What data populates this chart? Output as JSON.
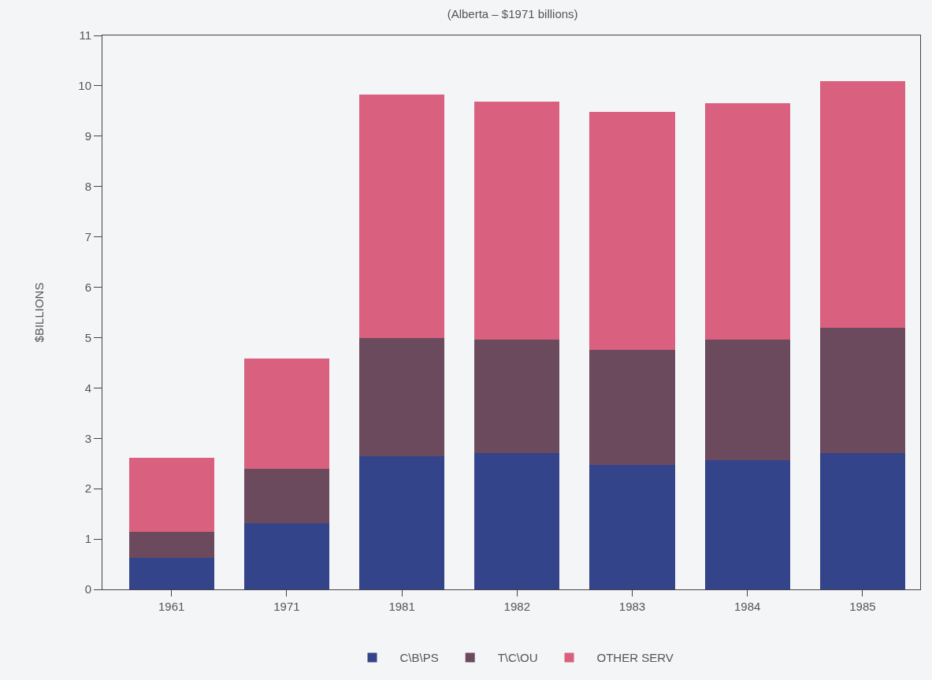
{
  "chart_data": {
    "type": "bar",
    "stacked": true,
    "subtitle": "(Alberta – $1971 billions)",
    "ylabel": "$BILLIONS",
    "categories": [
      "1961",
      "1971",
      "1981",
      "1982",
      "1983",
      "1984",
      "1985"
    ],
    "series": [
      {
        "name": "C\\B\\PS",
        "color": "#34448a",
        "values": [
          0.63,
          1.31,
          2.65,
          2.7,
          2.47,
          2.57,
          2.7
        ]
      },
      {
        "name": "T\\C\\OU",
        "color": "#6b4a5e",
        "values": [
          0.51,
          1.08,
          2.34,
          2.26,
          2.28,
          2.39,
          2.49
        ]
      },
      {
        "name": "OTHER SERV",
        "color": "#d9607e",
        "values": [
          1.48,
          2.2,
          4.84,
          4.73,
          4.73,
          4.7,
          4.9
        ]
      }
    ],
    "ylim": [
      0,
      11
    ],
    "yticks": [
      0,
      1,
      2,
      3,
      4,
      5,
      6,
      7,
      8,
      9,
      10,
      11
    ],
    "grid": false,
    "legend": "bottom"
  }
}
